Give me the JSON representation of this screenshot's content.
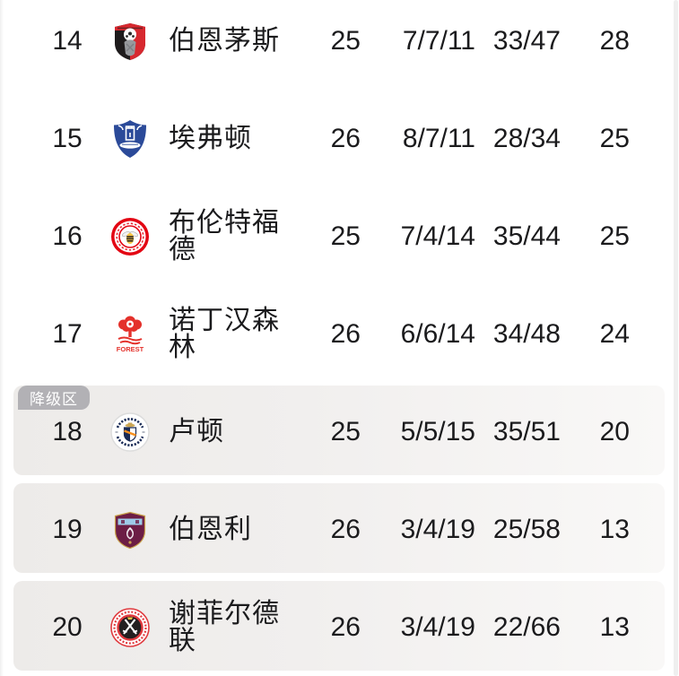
{
  "table": {
    "relegation_tag": "降级区",
    "rows": [
      {
        "rank": "14",
        "team": "伯恩茅斯",
        "badge": "bournemouth",
        "badge_icon": "bournemouth-crest-icon",
        "played": "25",
        "win_draw_loss": "7/7/11",
        "goals": "33/47",
        "points": "28",
        "zone": false,
        "zone_start": false
      },
      {
        "rank": "15",
        "team": "埃弗顿",
        "badge": "everton",
        "badge_icon": "everton-crest-icon",
        "played": "26",
        "win_draw_loss": "8/7/11",
        "goals": "28/34",
        "points": "25",
        "zone": false,
        "zone_start": false
      },
      {
        "rank": "16",
        "team": "布伦特福德",
        "badge": "brentford",
        "badge_icon": "brentford-crest-icon",
        "played": "25",
        "win_draw_loss": "7/4/14",
        "goals": "35/44",
        "points": "25",
        "zone": false,
        "zone_start": false
      },
      {
        "rank": "17",
        "team": "诺丁汉森林",
        "badge": "forest",
        "badge_icon": "nottingham-forest-crest-icon",
        "played": "26",
        "win_draw_loss": "6/6/14",
        "goals": "34/48",
        "points": "24",
        "zone": false,
        "zone_start": false
      },
      {
        "rank": "18",
        "team": "卢顿",
        "badge": "luton",
        "badge_icon": "luton-town-crest-icon",
        "played": "25",
        "win_draw_loss": "5/5/15",
        "goals": "35/51",
        "points": "20",
        "zone": true,
        "zone_start": true
      },
      {
        "rank": "19",
        "team": "伯恩利",
        "badge": "burnley",
        "badge_icon": "burnley-crest-icon",
        "played": "26",
        "win_draw_loss": "3/4/19",
        "goals": "25/58",
        "points": "13",
        "zone": true,
        "zone_start": false
      },
      {
        "rank": "20",
        "team": "谢菲尔德联",
        "badge": "sheffield",
        "badge_icon": "sheffield-united-crest-icon",
        "played": "26",
        "win_draw_loss": "3/4/19",
        "goals": "22/66",
        "points": "13",
        "zone": true,
        "zone_start": false
      }
    ],
    "colors": {
      "text": "#1b1b1d",
      "zone_tag_bg": "#b2b1b5",
      "zone_block_left": "#edebe9",
      "zone_block_right": "#f9f8f7"
    }
  }
}
